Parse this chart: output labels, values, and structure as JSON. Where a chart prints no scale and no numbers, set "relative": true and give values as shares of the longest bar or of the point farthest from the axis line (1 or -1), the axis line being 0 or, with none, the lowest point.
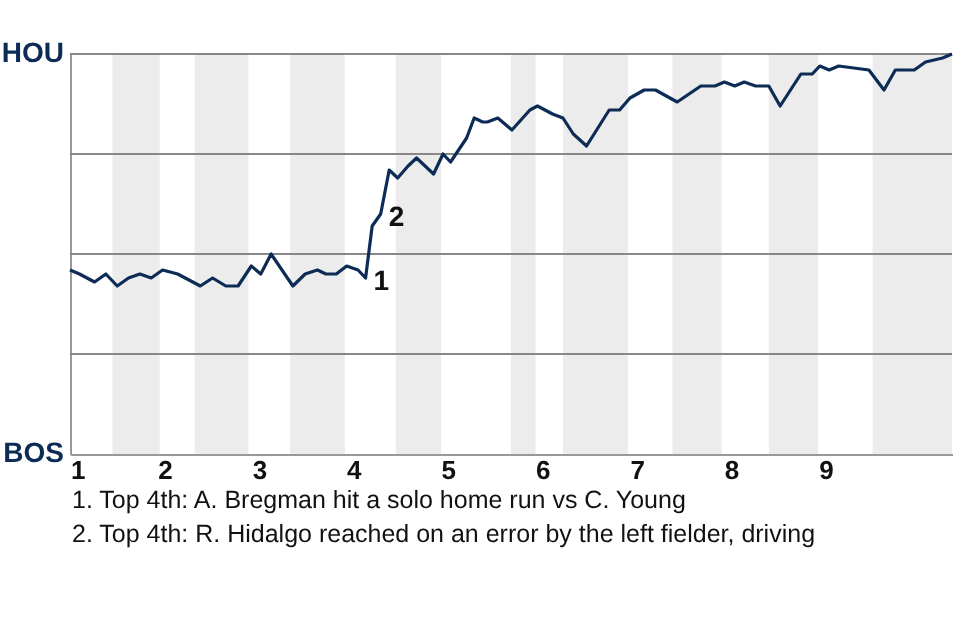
{
  "chart_data": {
    "type": "line",
    "relative": true,
    "x": [
      1.0,
      1.1,
      1.26,
      1.38,
      1.5,
      1.62,
      1.74,
      1.86,
      1.98,
      2.14,
      2.38,
      2.51,
      2.65,
      2.78,
      2.92,
      3.02,
      3.13,
      3.36,
      3.49,
      3.62,
      3.71,
      3.82,
      3.93,
      4.05,
      4.13,
      4.2,
      4.29,
      4.38,
      4.47,
      4.58,
      4.67,
      4.85,
      4.95,
      5.03,
      5.2,
      5.28,
      5.37,
      5.42,
      5.53,
      5.58,
      5.68,
      5.87,
      5.95,
      6.11,
      6.22,
      6.33,
      6.47,
      6.71,
      6.82,
      6.93,
      7.08,
      7.2,
      7.43,
      7.68,
      7.83,
      7.93,
      8.04,
      8.14,
      8.26,
      8.4,
      8.52,
      8.74,
      8.86,
      8.94,
      9.04,
      9.14,
      9.46,
      9.62,
      9.74,
      9.94,
      10.06,
      10.24,
      10.34
    ],
    "series": [
      {
        "color": "#0c2c56",
        "values": [
          0.46,
          0.45,
          0.43,
          0.45,
          0.42,
          0.44,
          0.45,
          0.44,
          0.46,
          0.45,
          0.42,
          0.44,
          0.42,
          0.42,
          0.47,
          0.45,
          0.5,
          0.42,
          0.45,
          0.46,
          0.45,
          0.45,
          0.47,
          0.46,
          0.44,
          0.57,
          0.6,
          0.71,
          0.69,
          0.72,
          0.74,
          0.7,
          0.75,
          0.73,
          0.79,
          0.84,
          0.83,
          0.83,
          0.84,
          0.83,
          0.81,
          0.86,
          0.87,
          0.85,
          0.84,
          0.8,
          0.77,
          0.86,
          0.86,
          0.89,
          0.91,
          0.91,
          0.88,
          0.92,
          0.92,
          0.93,
          0.92,
          0.93,
          0.92,
          0.92,
          0.87,
          0.95,
          0.95,
          0.97,
          0.96,
          0.97,
          0.96,
          0.91,
          0.96,
          0.96,
          0.98,
          0.99,
          1.0
        ]
      }
    ],
    "xlim": [
      1,
      10.34
    ],
    "xticks": [
      1,
      2,
      3,
      4,
      5,
      6,
      7,
      8,
      9
    ],
    "ref_lines": [
      {
        "axis": "y",
        "value": 0.25,
        "color": "#888888"
      },
      {
        "axis": "y",
        "value": 0.5,
        "color": "#888888"
      },
      {
        "axis": "y",
        "value": 0.75,
        "color": "#888888"
      },
      {
        "axis": "y",
        "value": 1,
        "color": "#888888"
      }
    ],
    "bands": [
      {
        "axis": "x",
        "from": 1.45,
        "to": 1.95,
        "color": "#ececec"
      },
      {
        "axis": "x",
        "from": 2.32,
        "to": 2.89,
        "color": "#ececec"
      },
      {
        "axis": "x",
        "from": 3.33,
        "to": 3.91,
        "color": "#ececec"
      },
      {
        "axis": "x",
        "from": 4.45,
        "to": 4.93,
        "color": "#ececec"
      },
      {
        "axis": "x",
        "from": 5.67,
        "to": 5.93,
        "color": "#ececec"
      },
      {
        "axis": "x",
        "from": 6.22,
        "to": 6.91,
        "color": "#ececec"
      },
      {
        "axis": "x",
        "from": 7.38,
        "to": 7.9,
        "color": "#ececec"
      },
      {
        "axis": "x",
        "from": 8.4,
        "to": 8.92,
        "color": "#ececec"
      },
      {
        "axis": "x",
        "from": 9.5,
        "to": 10.34,
        "color": "#ececec"
      }
    ],
    "annotations": [
      "HOU",
      "BOS",
      {
        "text": "1",
        "x": 4.13,
        "y": 0.44
      },
      {
        "text": "2",
        "x": 4.29,
        "y": 0.6
      },
      "1. Top 4th: A. Bregman hit a solo home run vs C. Young",
      "2. Top 4th: R. Hidalgo reached on an error by the left fielder, driving"
    ]
  }
}
